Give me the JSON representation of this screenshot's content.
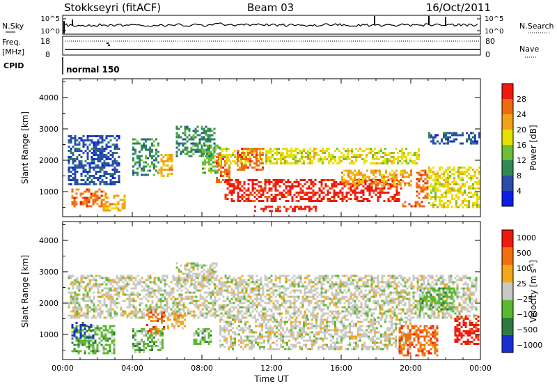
{
  "header": {
    "station": "Stokkseyri (fitACF)",
    "beam": "Beam 03",
    "date": "16/Oct/2011"
  },
  "top_panels": {
    "nsky_label": "N.Sky",
    "nsky_ticks": [
      "10^5",
      "10^0"
    ],
    "nsearch_label": "N.Search",
    "nsearch_ticks": [
      "10^5",
      "10^0"
    ],
    "freq_label_1": "Freq.",
    "freq_label_2": "[MHz]",
    "freq_ticks": [
      "18",
      "8"
    ],
    "nave_label": "Nave",
    "nave_ticks": [
      "80",
      "0"
    ],
    "cpid_label": "CPID",
    "cpid_value": "normal 150"
  },
  "colors": {
    "power_scale": [
      "#0b1ee6",
      "#2a4ea8",
      "#2f8a55",
      "#6cbf3a",
      "#e8e000",
      "#f2a21a",
      "#f06a10",
      "#ee1a10"
    ],
    "velocity_scale": [
      "#1a2ed0",
      "#2e7a40",
      "#5cb830",
      "#c8c8c4",
      "#f2a81a",
      "#f07010",
      "#ee1a10"
    ],
    "ground_scatter": "#c8c8c4"
  },
  "chart_data": [
    {
      "type": "heatmap",
      "panel": "power",
      "ylabel": "Slant Range [km]",
      "yticks": [
        "1000",
        "2000",
        "3000",
        "4000"
      ],
      "ylim": [
        200,
        4600
      ],
      "xlim": [
        0,
        24
      ],
      "colorbar_label": "Power [dB]",
      "colorbar_ticks": [
        "4",
        "8",
        "12",
        "16",
        "20",
        "24",
        "28"
      ],
      "regions": [
        {
          "x0": 0.3,
          "x1": 3.2,
          "y0": 1200,
          "y1": 2800,
          "level": 1
        },
        {
          "x0": 0.5,
          "x1": 2.5,
          "y0": 500,
          "y1": 1100,
          "level": 6
        },
        {
          "x0": 2.3,
          "x1": 3.6,
          "y0": 400,
          "y1": 900,
          "level": 5
        },
        {
          "x0": 4.0,
          "x1": 5.5,
          "y0": 1500,
          "y1": 2700,
          "level": 2
        },
        {
          "x0": 5.5,
          "x1": 6.3,
          "y0": 1500,
          "y1": 2200,
          "level": 5
        },
        {
          "x0": 6.5,
          "x1": 8.7,
          "y0": 2100,
          "y1": 3100,
          "level": 2
        },
        {
          "x0": 8.0,
          "x1": 9.0,
          "y0": 1600,
          "y1": 2500,
          "level": 3
        },
        {
          "x0": 8.8,
          "x1": 9.6,
          "y0": 1300,
          "y1": 2200,
          "level": 6
        },
        {
          "x0": 9.0,
          "x1": 20.5,
          "y0": 1900,
          "y1": 2400,
          "level": 4
        },
        {
          "x0": 10.0,
          "x1": 11.5,
          "y0": 1700,
          "y1": 2400,
          "level": 6
        },
        {
          "x0": 9.3,
          "x1": 19.5,
          "y0": 700,
          "y1": 1400,
          "level": 7
        },
        {
          "x0": 11.0,
          "x1": 14.5,
          "y0": 400,
          "y1": 550,
          "level": 7
        },
        {
          "x0": 16.0,
          "x1": 20.0,
          "y0": 1200,
          "y1": 1700,
          "level": 5
        },
        {
          "x0": 19.5,
          "x1": 20.8,
          "y0": 500,
          "y1": 700,
          "level": 6
        },
        {
          "x0": 20.3,
          "x1": 21.0,
          "y0": 800,
          "y1": 1700,
          "level": 6
        },
        {
          "x0": 21.0,
          "x1": 23.9,
          "y0": 500,
          "y1": 1800,
          "level": 4
        },
        {
          "x0": 21.0,
          "x1": 23.9,
          "y0": 2500,
          "y1": 2900,
          "level": 1
        }
      ]
    },
    {
      "type": "heatmap",
      "panel": "velocity",
      "ylabel": "Slant Range [km]",
      "yticks": [
        "1000",
        "2000",
        "3000",
        "4000"
      ],
      "ylim": [
        200,
        4600
      ],
      "xlim": [
        0,
        24
      ],
      "xticks": [
        "00:00",
        "04:00",
        "08:00",
        "12:00",
        "16:00",
        "20:00",
        "00:00"
      ],
      "xlabel": "Time UT",
      "colorbar_label": "Velocity [m s",
      "colorbar_label_sup": "-1",
      "colorbar_ticks": [
        "1000",
        "500",
        "100",
        "25",
        "−25",
        "−100",
        "−500",
        "−1000"
      ],
      "regions": [
        {
          "x0": 0.3,
          "x1": 23.8,
          "y0": 1500,
          "y1": 2900,
          "level": 3
        },
        {
          "x0": 6.5,
          "x1": 8.8,
          "y0": 2600,
          "y1": 3300,
          "level": 3
        },
        {
          "x0": 9.0,
          "x1": 20.0,
          "y0": 500,
          "y1": 1500,
          "level": 3
        },
        {
          "x0": 0.5,
          "x1": 3.0,
          "y0": 400,
          "y1": 1300,
          "level": 2
        },
        {
          "x0": 0.5,
          "x1": 1.8,
          "y0": 900,
          "y1": 1400,
          "level": 0
        },
        {
          "x0": 4.0,
          "x1": 5.8,
          "y0": 400,
          "y1": 1200,
          "level": 2
        },
        {
          "x0": 4.8,
          "x1": 5.8,
          "y0": 1000,
          "y1": 1800,
          "level": 5
        },
        {
          "x0": 6.0,
          "x1": 7.0,
          "y0": 1200,
          "y1": 1700,
          "level": 4
        },
        {
          "x0": 7.5,
          "x1": 8.5,
          "y0": 700,
          "y1": 1200,
          "level": 2
        },
        {
          "x0": 19.3,
          "x1": 21.5,
          "y0": 300,
          "y1": 1300,
          "level": 5
        },
        {
          "x0": 22.5,
          "x1": 23.9,
          "y0": 700,
          "y1": 1600,
          "level": 6
        },
        {
          "x0": 20.5,
          "x1": 22.5,
          "y0": 1800,
          "y1": 2500,
          "level": 2
        }
      ]
    }
  ]
}
